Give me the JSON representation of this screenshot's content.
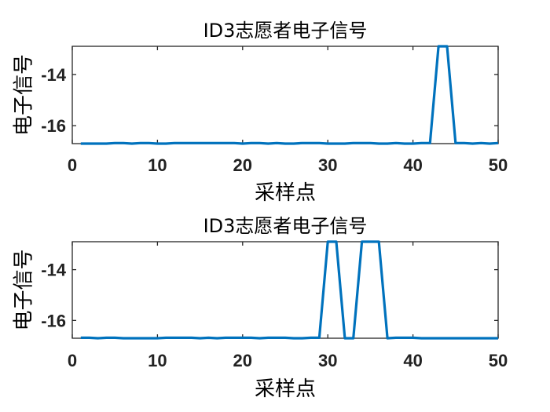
{
  "chart_data": [
    {
      "type": "line",
      "title": "ID3志愿者电子信号",
      "xlabel": "采样点",
      "ylabel": "电子信号",
      "xlim": [
        0,
        50
      ],
      "ylim": [
        -16.7,
        -12.9
      ],
      "xticks": [
        "0",
        "10",
        "20",
        "30",
        "40",
        "50"
      ],
      "yticks": [
        "-14",
        "-16"
      ],
      "grid": false,
      "series": [
        {
          "color": "#0072BD",
          "x": [
            1,
            2,
            3,
            4,
            5,
            6,
            7,
            8,
            9,
            10,
            11,
            12,
            13,
            14,
            15,
            16,
            17,
            18,
            19,
            20,
            21,
            22,
            23,
            24,
            25,
            26,
            27,
            28,
            29,
            30,
            31,
            32,
            33,
            34,
            35,
            36,
            37,
            38,
            39,
            40,
            41,
            42,
            43,
            44,
            45,
            46,
            47,
            48,
            49,
            50
          ],
          "y": [
            -16.7,
            -16.7,
            -16.7,
            -16.7,
            -16.68,
            -16.68,
            -16.7,
            -16.68,
            -16.68,
            -16.7,
            -16.7,
            -16.68,
            -16.68,
            -16.68,
            -16.68,
            -16.68,
            -16.68,
            -16.68,
            -16.68,
            -16.7,
            -16.68,
            -16.68,
            -16.7,
            -16.68,
            -16.7,
            -16.7,
            -16.68,
            -16.68,
            -16.68,
            -16.7,
            -16.7,
            -16.7,
            -16.68,
            -16.68,
            -16.68,
            -16.7,
            -16.7,
            -16.68,
            -16.7,
            -16.7,
            -16.68,
            -16.68,
            -12.9,
            -12.9,
            -16.68,
            -16.68,
            -16.7,
            -16.68,
            -16.7,
            -16.68
          ]
        }
      ]
    },
    {
      "type": "line",
      "title": "ID3志愿者电子信号",
      "xlabel": "采样点",
      "ylabel": "电子信号",
      "xlim": [
        0,
        50
      ],
      "ylim": [
        -16.7,
        -12.9
      ],
      "xticks": [
        "0",
        "10",
        "20",
        "30",
        "40",
        "50"
      ],
      "yticks": [
        "-14",
        "-16"
      ],
      "grid": false,
      "series": [
        {
          "color": "#0072BD",
          "x": [
            1,
            2,
            3,
            4,
            5,
            6,
            7,
            8,
            9,
            10,
            11,
            12,
            13,
            14,
            15,
            16,
            17,
            18,
            19,
            20,
            21,
            22,
            23,
            24,
            25,
            26,
            27,
            28,
            29,
            30,
            31,
            32,
            33,
            34,
            35,
            36,
            37,
            38,
            39,
            40,
            41,
            42,
            43,
            44,
            45,
            46,
            47,
            48,
            49,
            50
          ],
          "y": [
            -16.68,
            -16.68,
            -16.7,
            -16.68,
            -16.68,
            -16.7,
            -16.7,
            -16.7,
            -16.7,
            -16.7,
            -16.68,
            -16.68,
            -16.68,
            -16.68,
            -16.7,
            -16.68,
            -16.7,
            -16.68,
            -16.68,
            -16.68,
            -16.68,
            -16.7,
            -16.68,
            -16.68,
            -16.68,
            -16.7,
            -16.7,
            -16.68,
            -16.68,
            -12.9,
            -12.9,
            -16.7,
            -16.7,
            -12.9,
            -12.9,
            -12.9,
            -16.7,
            -16.68,
            -16.68,
            -16.68,
            -16.7,
            -16.7,
            -16.7,
            -16.7,
            -16.7,
            -16.7,
            -16.7,
            -16.7,
            -16.7,
            -16.7
          ]
        }
      ]
    }
  ]
}
